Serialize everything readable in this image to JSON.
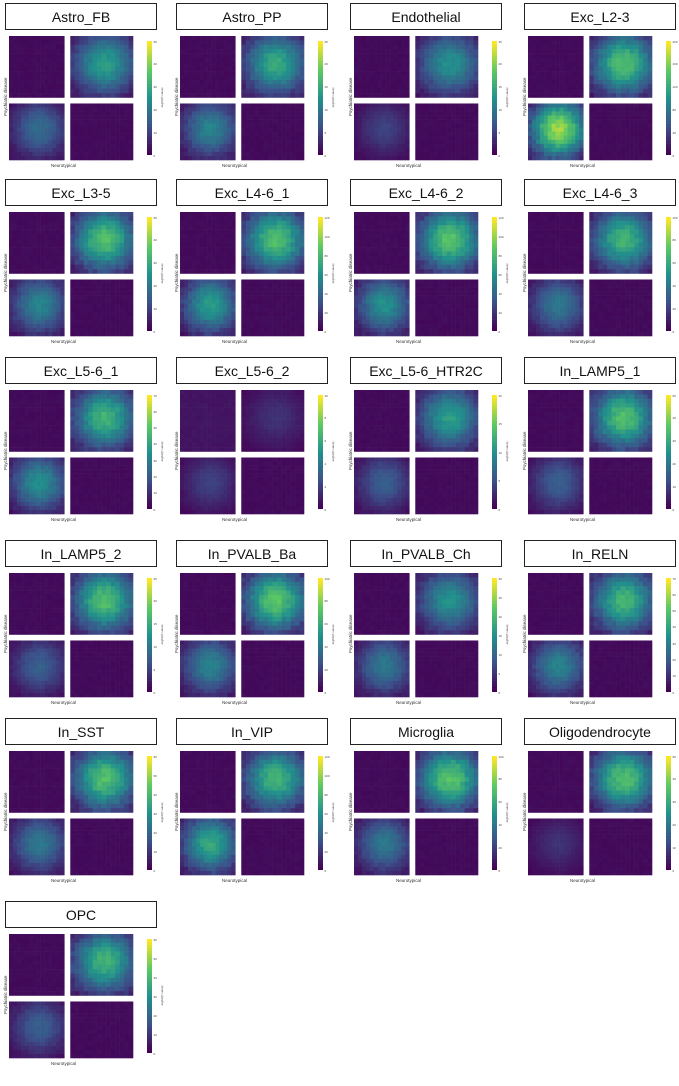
{
  "figure": {
    "ylabel": "Psychiatric disease",
    "xlabel": "Neurotypical",
    "colorbar_label": "-log10(P-value)",
    "colormap": [
      "#440154",
      "#3b528b",
      "#21918c",
      "#5ec962",
      "#fde725"
    ]
  },
  "chart_data": [
    {
      "type": "heatmap",
      "title": "Astro_FB",
      "ylabel": "Psychiatric disease",
      "xlabel": "Neurotypical",
      "colorbar_label": "-log10(P-value)",
      "ticks": [
        "0",
        "10",
        "20",
        "30",
        "40",
        "50"
      ],
      "vmax": 50,
      "quadrants": {
        "top_left": 0.02,
        "top_right": 0.55,
        "bottom_left": 0.35,
        "bottom_right": 0.02
      }
    },
    {
      "type": "heatmap",
      "title": "Astro_PP",
      "ylabel": "Psychiatric disease",
      "xlabel": "Neurotypical",
      "colorbar_label": "-log10(P-value)",
      "ticks": [
        "0",
        "5",
        "10",
        "15",
        "20",
        "25"
      ],
      "vmax": 25,
      "quadrants": {
        "top_left": 0.02,
        "top_right": 0.6,
        "bottom_left": 0.45,
        "bottom_right": 0.02
      }
    },
    {
      "type": "heatmap",
      "title": "Endothelial",
      "ylabel": "Psychiatric disease",
      "xlabel": "Neurotypical",
      "colorbar_label": "-log10(P-value)",
      "ticks": [
        "0",
        "5",
        "10",
        "15",
        "20",
        "25"
      ],
      "vmax": 25,
      "quadrants": {
        "top_left": 0.02,
        "top_right": 0.5,
        "bottom_left": 0.2,
        "bottom_right": 0.02
      }
    },
    {
      "type": "heatmap",
      "title": "Exc_L2-3",
      "ylabel": "Psychiatric disease",
      "xlabel": "Neurotypical",
      "colorbar_label": "-log10(P-value)",
      "ticks": [
        "0",
        "40",
        "80",
        "120",
        "160",
        "200"
      ],
      "vmax": 200,
      "quadrants": {
        "top_left": 0.02,
        "top_right": 0.7,
        "bottom_left": 0.85,
        "bottom_right": 0.02
      }
    },
    {
      "type": "heatmap",
      "title": "Exc_L3-5",
      "ylabel": "Psychiatric disease",
      "xlabel": "Neurotypical",
      "colorbar_label": "-log10(P-value)",
      "ticks": [
        "0",
        "10",
        "20",
        "30",
        "40",
        "50"
      ],
      "vmax": 50,
      "quadrants": {
        "top_left": 0.02,
        "top_right": 0.7,
        "bottom_left": 0.45,
        "bottom_right": 0.02
      }
    },
    {
      "type": "heatmap",
      "title": "Exc_L4-6_1",
      "ylabel": "Psychiatric disease",
      "xlabel": "Neurotypical",
      "colorbar_label": "-log10(P-value)",
      "ticks": [
        "0",
        "20",
        "40",
        "60",
        "80",
        "100",
        "120"
      ],
      "vmax": 120,
      "quadrants": {
        "top_left": 0.02,
        "top_right": 0.7,
        "bottom_left": 0.55,
        "bottom_right": 0.02
      }
    },
    {
      "type": "heatmap",
      "title": "Exc_L4-6_2",
      "ylabel": "Psychiatric disease",
      "xlabel": "Neurotypical",
      "colorbar_label": "-log10(P-value)",
      "ticks": [
        "0",
        "20",
        "40",
        "60",
        "80",
        "100",
        "120"
      ],
      "vmax": 120,
      "quadrants": {
        "top_left": 0.02,
        "top_right": 0.72,
        "bottom_left": 0.5,
        "bottom_right": 0.02
      }
    },
    {
      "type": "heatmap",
      "title": "Exc_L4-6_3",
      "ylabel": "Psychiatric disease",
      "xlabel": "Neurotypical",
      "colorbar_label": "-log10(P-value)",
      "ticks": [
        "0",
        "20",
        "40",
        "60",
        "80",
        "100"
      ],
      "vmax": 100,
      "quadrants": {
        "top_left": 0.02,
        "top_right": 0.65,
        "bottom_left": 0.4,
        "bottom_right": 0.02
      }
    },
    {
      "type": "heatmap",
      "title": "Exc_L5-6_1",
      "ylabel": "Psychiatric disease",
      "xlabel": "Neurotypical",
      "colorbar_label": "-log10(P-value)",
      "ticks": [
        "0",
        "10",
        "20",
        "30",
        "40",
        "50",
        "60",
        "70"
      ],
      "vmax": 70,
      "quadrants": {
        "top_left": 0.02,
        "top_right": 0.65,
        "bottom_left": 0.5,
        "bottom_right": 0.02
      }
    },
    {
      "type": "heatmap",
      "title": "Exc_L5-6_2",
      "ylabel": "Psychiatric disease",
      "xlabel": "Neurotypical",
      "colorbar_label": "-log10(P-value)",
      "ticks": [
        "0",
        "2",
        "4",
        "6",
        "8",
        "10"
      ],
      "vmax": 10,
      "quadrants": {
        "top_left": 0.05,
        "top_right": 0.15,
        "bottom_left": 0.2,
        "bottom_right": 0.02
      }
    },
    {
      "type": "heatmap",
      "title": "Exc_L5-6_HTR2C",
      "ylabel": "Psychiatric disease",
      "xlabel": "Neurotypical",
      "colorbar_label": "-log10(P-value)",
      "ticks": [
        "0",
        "5",
        "10",
        "15",
        "20"
      ],
      "vmax": 20,
      "quadrants": {
        "top_left": 0.02,
        "top_right": 0.55,
        "bottom_left": 0.3,
        "bottom_right": 0.02
      }
    },
    {
      "type": "heatmap",
      "title": "In_LAMP5_1",
      "ylabel": "Psychiatric disease",
      "xlabel": "Neurotypical",
      "colorbar_label": "-log10(P-value)",
      "ticks": [
        "0",
        "10",
        "20",
        "30",
        "40",
        "50"
      ],
      "vmax": 50,
      "quadrants": {
        "top_left": 0.02,
        "top_right": 0.7,
        "bottom_left": 0.3,
        "bottom_right": 0.02
      }
    },
    {
      "type": "heatmap",
      "title": "In_LAMP5_2",
      "ylabel": "Psychiatric disease",
      "xlabel": "Neurotypical",
      "colorbar_label": "-log10(P-value)",
      "ticks": [
        "0",
        "5",
        "10",
        "15",
        "20",
        "25"
      ],
      "vmax": 25,
      "quadrants": {
        "top_left": 0.02,
        "top_right": 0.7,
        "bottom_left": 0.3,
        "bottom_right": 0.02
      }
    },
    {
      "type": "heatmap",
      "title": "In_PVALB_Ba",
      "ylabel": "Psychiatric disease",
      "xlabel": "Neurotypical",
      "colorbar_label": "-log10(P-value)",
      "ticks": [
        "0",
        "20",
        "40",
        "60",
        "80",
        "100"
      ],
      "vmax": 100,
      "quadrants": {
        "top_left": 0.02,
        "top_right": 0.72,
        "bottom_left": 0.45,
        "bottom_right": 0.02
      }
    },
    {
      "type": "heatmap",
      "title": "In_PVALB_Ch",
      "ylabel": "Psychiatric disease",
      "xlabel": "Neurotypical",
      "colorbar_label": "-log10(P-value)",
      "ticks": [
        "0",
        "5",
        "10",
        "15",
        "20",
        "25",
        "30"
      ],
      "vmax": 30,
      "quadrants": {
        "top_left": 0.02,
        "top_right": 0.5,
        "bottom_left": 0.4,
        "bottom_right": 0.02
      }
    },
    {
      "type": "heatmap",
      "title": "In_RELN",
      "ylabel": "Psychiatric disease",
      "xlabel": "Neurotypical",
      "colorbar_label": "-log10(P-value)",
      "ticks": [
        "0",
        "10",
        "20",
        "30",
        "40",
        "50",
        "60",
        "70"
      ],
      "vmax": 70,
      "quadrants": {
        "top_left": 0.02,
        "top_right": 0.65,
        "bottom_left": 0.45,
        "bottom_right": 0.02
      }
    },
    {
      "type": "heatmap",
      "title": "In_SST",
      "ylabel": "Psychiatric disease",
      "xlabel": "Neurotypical",
      "colorbar_label": "-log10(P-value)",
      "ticks": [
        "0",
        "10",
        "20",
        "30",
        "40",
        "50",
        "60"
      ],
      "vmax": 60,
      "quadrants": {
        "top_left": 0.02,
        "top_right": 0.7,
        "bottom_left": 0.4,
        "bottom_right": 0.02
      }
    },
    {
      "type": "heatmap",
      "title": "In_VIP",
      "ylabel": "Psychiatric disease",
      "xlabel": "Neurotypical",
      "colorbar_label": "-log10(P-value)",
      "ticks": [
        "0",
        "20",
        "40",
        "60",
        "80",
        "100",
        "120"
      ],
      "vmax": 120,
      "quadrants": {
        "top_left": 0.02,
        "top_right": 0.65,
        "bottom_left": 0.6,
        "bottom_right": 0.02
      }
    },
    {
      "type": "heatmap",
      "title": "Microglia",
      "ylabel": "Psychiatric disease",
      "xlabel": "Neurotypical",
      "colorbar_label": "-log10(P-value)",
      "ticks": [
        "0",
        "20",
        "40",
        "60",
        "80",
        "100"
      ],
      "vmax": 100,
      "quadrants": {
        "top_left": 0.02,
        "top_right": 0.72,
        "bottom_left": 0.4,
        "bottom_right": 0.02
      }
    },
    {
      "type": "heatmap",
      "title": "Oligodendrocyte",
      "ylabel": "Psychiatric disease",
      "xlabel": "Neurotypical",
      "colorbar_label": "-log10(P-value)",
      "ticks": [
        "0",
        "10",
        "20",
        "30",
        "40",
        "50"
      ],
      "vmax": 50,
      "quadrants": {
        "top_left": 0.02,
        "top_right": 0.7,
        "bottom_left": 0.15,
        "bottom_right": 0.02
      }
    },
    {
      "type": "heatmap",
      "title": "OPC",
      "ylabel": "Psychiatric disease",
      "xlabel": "Neurotypical",
      "colorbar_label": "-log10(P-value)",
      "ticks": [
        "0",
        "10",
        "20",
        "30",
        "40",
        "50",
        "60"
      ],
      "vmax": 60,
      "quadrants": {
        "top_left": 0.02,
        "top_right": 0.65,
        "bottom_left": 0.3,
        "bottom_right": 0.02
      }
    }
  ]
}
